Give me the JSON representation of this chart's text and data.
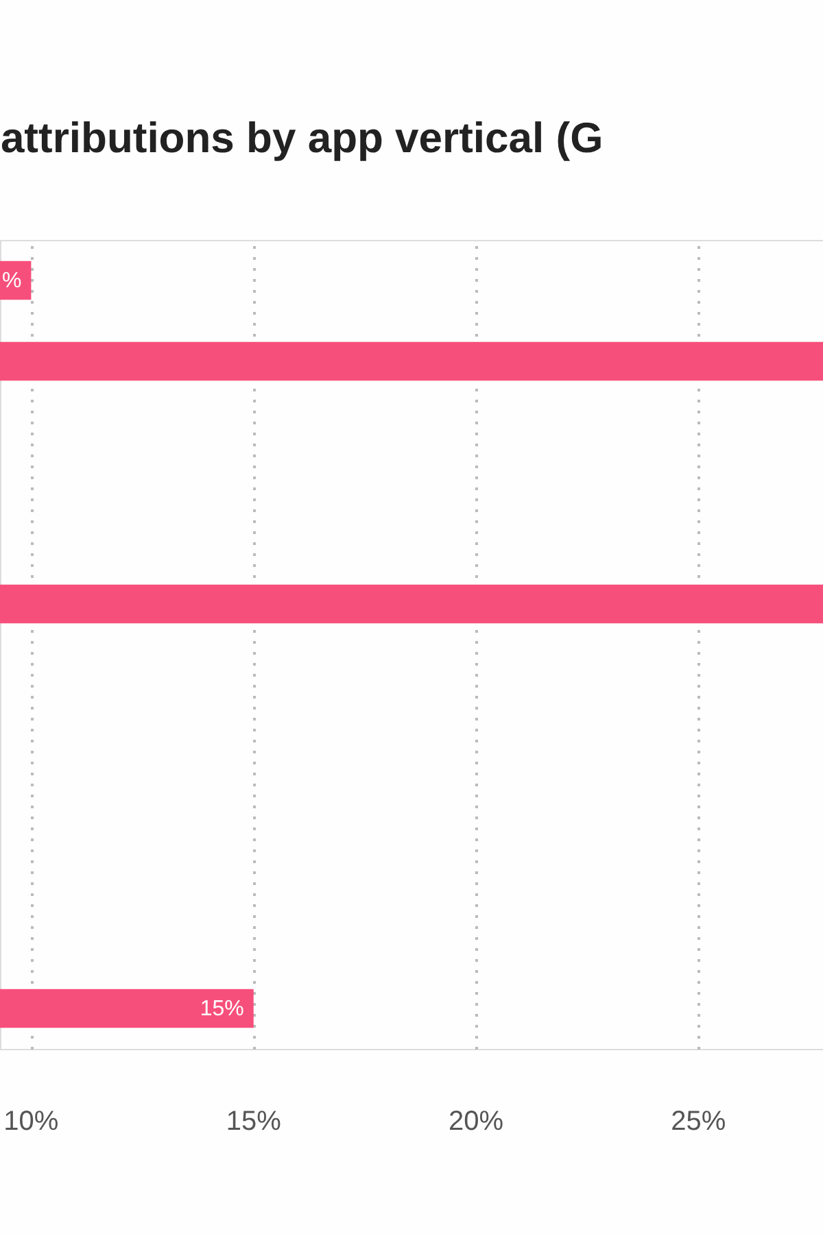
{
  "chart_data": {
    "type": "bar",
    "orientation": "horizontal",
    "title": "attributions by app vertical (G",
    "categories": [
      null,
      null,
      null,
      null,
      null,
      null,
      null,
      null,
      null,
      null
    ],
    "values": [
      10,
      27.8,
      null,
      null,
      27.8,
      null,
      null,
      null,
      null,
      15
    ],
    "value_labels": [
      "%",
      null,
      null,
      null,
      null,
      null,
      null,
      null,
      null,
      "15%"
    ],
    "color": "#f74f7b",
    "xlim": [
      9.3,
      27.8
    ],
    "xticks": [
      {
        "value": 10,
        "label": "10%"
      },
      {
        "value": 15,
        "label": "15%"
      },
      {
        "value": 20,
        "label": "20%"
      },
      {
        "value": 25,
        "label": "25%"
      }
    ],
    "grid": "x"
  }
}
